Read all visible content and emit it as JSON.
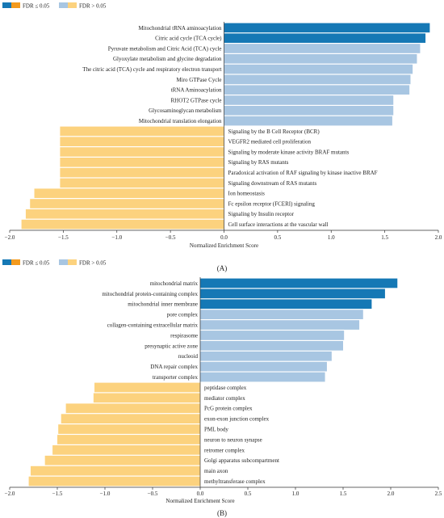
{
  "colors": {
    "sig_dark": "#1578b5",
    "sig_orange": "#f39a1e",
    "nonsig_blue": "#a8c6e2",
    "nonsig_yellow": "#fcd27e",
    "text": "#222222"
  },
  "chart_data": [
    {
      "type": "bar",
      "orientation": "horizontal",
      "panel_label": "(A)",
      "xlabel": "Normalized Enrichment Score",
      "xlim": [
        -2.0,
        2.0
      ],
      "xticks": [
        -2.0,
        -1.5,
        -1.0,
        -0.5,
        0.0,
        0.5,
        1.0,
        1.5,
        2.0
      ],
      "xtick_labels": [
        "−2.0",
        "−1.5",
        "−1.0",
        "−0.5",
        "0.0",
        "0.5",
        "1.0",
        "1.5",
        "2.0"
      ],
      "legend": {
        "position": "top-left",
        "sig_label": "FDR ≤ 0.05",
        "nonsig_label": "FDR > 0.05"
      },
      "bars": [
        {
          "label": "Mitochondrial tRNA aminoacylation",
          "value": 1.92,
          "significant": true
        },
        {
          "label": "Citric acid cycle (TCA cycle)",
          "value": 1.88,
          "significant": true
        },
        {
          "label": "Pyruvate metabolism and Citric Acid (TCA) cycle",
          "value": 1.83,
          "significant": false
        },
        {
          "label": "Glyoxylate metabolism and glycine degradation",
          "value": 1.8,
          "significant": false
        },
        {
          "label": "The citric acid (TCA) cycle and respiratory electron transport",
          "value": 1.76,
          "significant": false
        },
        {
          "label": "Miro GTPase Cycle",
          "value": 1.74,
          "significant": false
        },
        {
          "label": "tRNA Aminoacylation",
          "value": 1.73,
          "significant": false
        },
        {
          "label": "RHOT2 GTPase cycle",
          "value": 1.58,
          "significant": false
        },
        {
          "label": "Glycosaminoglycan metabolism",
          "value": 1.58,
          "significant": false
        },
        {
          "label": "Mitochondrial translation elongation",
          "value": 1.57,
          "significant": false
        },
        {
          "label": "Signaling by the B Cell Receptor (BCR)",
          "value": -1.53,
          "significant": false
        },
        {
          "label": "VEGFR2 mediated cell proliferation",
          "value": -1.53,
          "significant": false
        },
        {
          "label": "Signaling by moderate kinase activity BRAF mutants",
          "value": -1.53,
          "significant": false
        },
        {
          "label": "Signaling by RAS mutants",
          "value": -1.53,
          "significant": false
        },
        {
          "label": "Paradoxical activation of RAF signaling by kinase inactive BRAF",
          "value": -1.53,
          "significant": false
        },
        {
          "label": "Signaling downstream of RAS mutants",
          "value": -1.53,
          "significant": false
        },
        {
          "label": "Ion homeostasis",
          "value": -1.77,
          "significant": false
        },
        {
          "label": "Fc epsilon receptor (FCERI) signaling",
          "value": -1.81,
          "significant": false
        },
        {
          "label": "Signaling by Insulin receptor",
          "value": -1.85,
          "significant": false
        },
        {
          "label": "Cell surface interactions at the vascular wall",
          "value": -1.89,
          "significant": false
        }
      ]
    },
    {
      "type": "bar",
      "orientation": "horizontal",
      "panel_label": "(B)",
      "xlabel": "Normalized Enrichment Score",
      "xlim": [
        -2.0,
        2.5
      ],
      "xticks": [
        -2.0,
        -1.5,
        -1.0,
        -0.5,
        0.0,
        0.5,
        1.0,
        1.5,
        2.0,
        2.5
      ],
      "xtick_labels": [
        "−2.0",
        "−1.5",
        "−1.0",
        "−0.5",
        "0.0",
        "0.5",
        "1.0",
        "1.5",
        "2.0",
        "2.5"
      ],
      "legend": {
        "position": "top-left",
        "sig_label": "FDR ≤ 0.05",
        "nonsig_label": "FDR > 0.05"
      },
      "bars": [
        {
          "label": "mitochondrial matrix",
          "value": 2.07,
          "significant": true
        },
        {
          "label": "mitochondrial protein-containing complex",
          "value": 1.94,
          "significant": true
        },
        {
          "label": "mitochondrial inner membrane",
          "value": 1.8,
          "significant": true
        },
        {
          "label": "pore complex",
          "value": 1.71,
          "significant": false
        },
        {
          "label": "collagen-containing extracellular matrix",
          "value": 1.67,
          "significant": false
        },
        {
          "label": "respirasome",
          "value": 1.51,
          "significant": false
        },
        {
          "label": "presynaptic active zone",
          "value": 1.5,
          "significant": false
        },
        {
          "label": "nucleoid",
          "value": 1.38,
          "significant": false
        },
        {
          "label": "DNA repair complex",
          "value": 1.33,
          "significant": false
        },
        {
          "label": "transporter complex",
          "value": 1.31,
          "significant": false
        },
        {
          "label": "peptidase complex",
          "value": -1.11,
          "significant": false
        },
        {
          "label": "mediator complex",
          "value": -1.12,
          "significant": false
        },
        {
          "label": "PcG protein complex",
          "value": -1.41,
          "significant": false
        },
        {
          "label": "exon-exon junction complex",
          "value": -1.46,
          "significant": false
        },
        {
          "label": "PML body",
          "value": -1.49,
          "significant": false
        },
        {
          "label": "neuron to neuron synapse",
          "value": -1.5,
          "significant": false
        },
        {
          "label": "retromer complex",
          "value": -1.55,
          "significant": false
        },
        {
          "label": "Golgi apparatus subcompartment",
          "value": -1.63,
          "significant": false
        },
        {
          "label": "main axon",
          "value": -1.78,
          "significant": false
        },
        {
          "label": "methyltransferase complex",
          "value": -1.8,
          "significant": false
        }
      ]
    }
  ]
}
